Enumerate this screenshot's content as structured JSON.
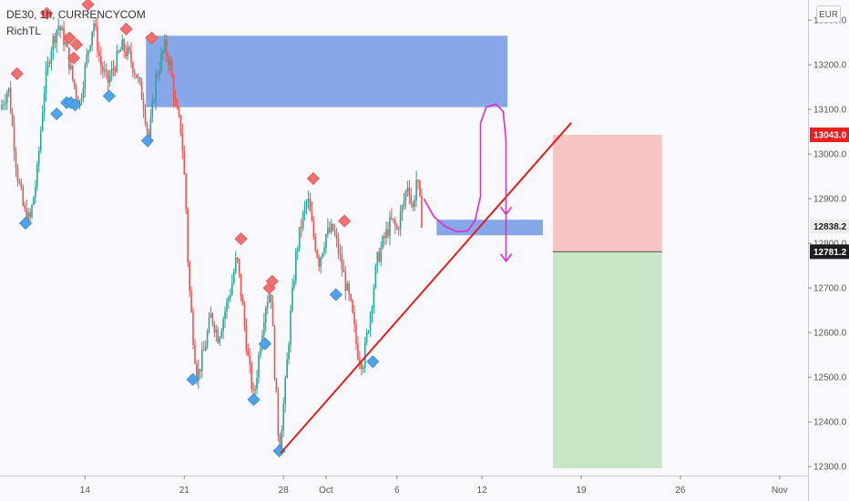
{
  "header": {
    "symbol": "DE30, 1h, CURRENCYCOM",
    "indicator": "RichTL",
    "currency": "EUR"
  },
  "chart_data": {
    "type": "candlestick",
    "y_ticks": [
      12300,
      12400,
      12500,
      12600,
      12700,
      12800,
      12900,
      13000,
      13100,
      13200,
      13300
    ],
    "y_tick_labels": [
      "12300.0",
      "12400.0",
      "12500.0",
      "12600.0",
      "12700.0",
      "12800.0",
      "12900.0",
      "13000.0",
      "13100.0",
      "13200.0",
      "13300.0"
    ],
    "ylim": [
      12280,
      13345
    ],
    "x_ticks": [
      "14",
      "21",
      "28",
      "Oct",
      "6",
      "12",
      "19",
      "26",
      "Nov"
    ],
    "x_tick_days": [
      14,
      21,
      28,
      31,
      36,
      42,
      49,
      56,
      63
    ],
    "x_range_days": [
      8,
      65
    ],
    "price_badges": [
      {
        "label": "13043.0",
        "value": 13043.0,
        "color": "#e91e1e"
      },
      {
        "label": "12838.2",
        "value": 12838.2,
        "color": "#ececec"
      },
      {
        "label": "12781.2",
        "value": 12781.2,
        "color": "#1e1e1e"
      }
    ],
    "price_path": [
      [
        8.0,
        13100
      ],
      [
        8.6,
        13150
      ],
      [
        9.2,
        12960
      ],
      [
        9.7,
        12870
      ],
      [
        10.1,
        12850
      ],
      [
        10.6,
        12950
      ],
      [
        11.1,
        13140
      ],
      [
        11.6,
        13240
      ],
      [
        12.1,
        13290
      ],
      [
        12.6,
        13250
      ],
      [
        13.1,
        13170
      ],
      [
        13.6,
        13110
      ],
      [
        14.1,
        13210
      ],
      [
        14.6,
        13300
      ],
      [
        15.1,
        13200
      ],
      [
        15.6,
        13160
      ],
      [
        16.1,
        13200
      ],
      [
        16.6,
        13240
      ],
      [
        17.1,
        13220
      ],
      [
        17.6,
        13180
      ],
      [
        18.1,
        13120
      ],
      [
        18.5,
        13030
      ],
      [
        19.0,
        13170
      ],
      [
        19.6,
        13240
      ],
      [
        20.0,
        13200
      ],
      [
        20.4,
        13100
      ],
      [
        20.8,
        13050
      ],
      [
        21.1,
        12900
      ],
      [
        21.3,
        12720
      ],
      [
        21.6,
        12600
      ],
      [
        21.9,
        12500
      ],
      [
        22.4,
        12560
      ],
      [
        22.9,
        12640
      ],
      [
        23.4,
        12590
      ],
      [
        23.8,
        12640
      ],
      [
        24.3,
        12700
      ],
      [
        24.7,
        12770
      ],
      [
        25.1,
        12660
      ],
      [
        25.5,
        12540
      ],
      [
        25.9,
        12450
      ],
      [
        26.3,
        12560
      ],
      [
        26.7,
        12660
      ],
      [
        27.1,
        12700
      ],
      [
        27.4,
        12500
      ],
      [
        27.7,
        12340
      ],
      [
        28.1,
        12470
      ],
      [
        28.5,
        12640
      ],
      [
        28.9,
        12780
      ],
      [
        29.3,
        12850
      ],
      [
        29.7,
        12900
      ],
      [
        30.1,
        12820
      ],
      [
        30.5,
        12760
      ],
      [
        31.0,
        12820
      ],
      [
        31.5,
        12830
      ],
      [
        31.9,
        12780
      ],
      [
        32.3,
        12720
      ],
      [
        32.8,
        12650
      ],
      [
        33.2,
        12560
      ],
      [
        33.6,
        12530
      ],
      [
        34.1,
        12640
      ],
      [
        34.6,
        12760
      ],
      [
        35.1,
        12810
      ],
      [
        35.6,
        12850
      ],
      [
        36.0,
        12830
      ],
      [
        36.4,
        12880
      ],
      [
        36.8,
        12940
      ],
      [
        37.1,
        12870
      ],
      [
        37.4,
        12950
      ],
      [
        37.8,
        12840
      ]
    ],
    "peak_markers": [
      [
        9.2,
        13180
      ],
      [
        11.3,
        13315
      ],
      [
        12.9,
        13260
      ],
      [
        13.2,
        13215
      ],
      [
        13.4,
        13245
      ],
      [
        14.2,
        13335
      ],
      [
        16.9,
        13280
      ],
      [
        18.7,
        13260
      ],
      [
        25.0,
        12810
      ],
      [
        27.0,
        12700
      ],
      [
        27.2,
        12715
      ],
      [
        30.1,
        12945
      ],
      [
        32.3,
        12850
      ]
    ],
    "trough_markers": [
      [
        9.8,
        12845
      ],
      [
        12.0,
        13090
      ],
      [
        12.7,
        13115
      ],
      [
        13.0,
        13115
      ],
      [
        13.3,
        13110
      ],
      [
        15.7,
        13130
      ],
      [
        18.4,
        13030
      ],
      [
        21.6,
        12495
      ],
      [
        25.9,
        12450
      ],
      [
        26.7,
        12575
      ],
      [
        27.7,
        12335
      ],
      [
        31.7,
        12685
      ],
      [
        34.3,
        12535
      ]
    ],
    "zones": [
      {
        "name": "resistance-zone",
        "x_days": [
          18.3,
          43.8
        ],
        "y_values": [
          13105,
          13265
        ],
        "color": "#6d95e3"
      },
      {
        "name": "support-zone",
        "x_days": [
          38.8,
          46.3
        ],
        "y_values": [
          12818,
          12853
        ],
        "color": "#6d95e3"
      },
      {
        "name": "risk-zone",
        "x_days": [
          47.0,
          54.7
        ],
        "y_values": [
          12781.2,
          13043.0
        ],
        "color": "#f9c4c4"
      },
      {
        "name": "reward-zone",
        "x_days": [
          47.0,
          54.7
        ],
        "y_values": [
          12296,
          12781.2
        ],
        "color": "#c8e6c6"
      }
    ],
    "trendline": {
      "from": [
        27.8,
        12330
      ],
      "to": [
        48.3,
        13070
      ],
      "color": "#e41c1c"
    },
    "projection_path": [
      [
        37.9,
        12900
      ],
      [
        38.6,
        12860
      ],
      [
        39.4,
        12838
      ],
      [
        40.2,
        12826
      ],
      [
        41.0,
        12828
      ]
    ],
    "projection_loop": {
      "color": "#e629c9",
      "points": [
        [
          41.0,
          12828
        ],
        [
          41.5,
          12850
        ],
        [
          41.9,
          12905
        ],
        [
          41.9,
          12990
        ],
        [
          41.9,
          13070
        ],
        [
          42.3,
          13105
        ],
        [
          43.0,
          13112
        ],
        [
          43.5,
          13095
        ],
        [
          43.7,
          13030
        ],
        [
          43.7,
          12950
        ],
        [
          43.7,
          12860
        ],
        [
          43.7,
          12760
        ]
      ]
    }
  }
}
